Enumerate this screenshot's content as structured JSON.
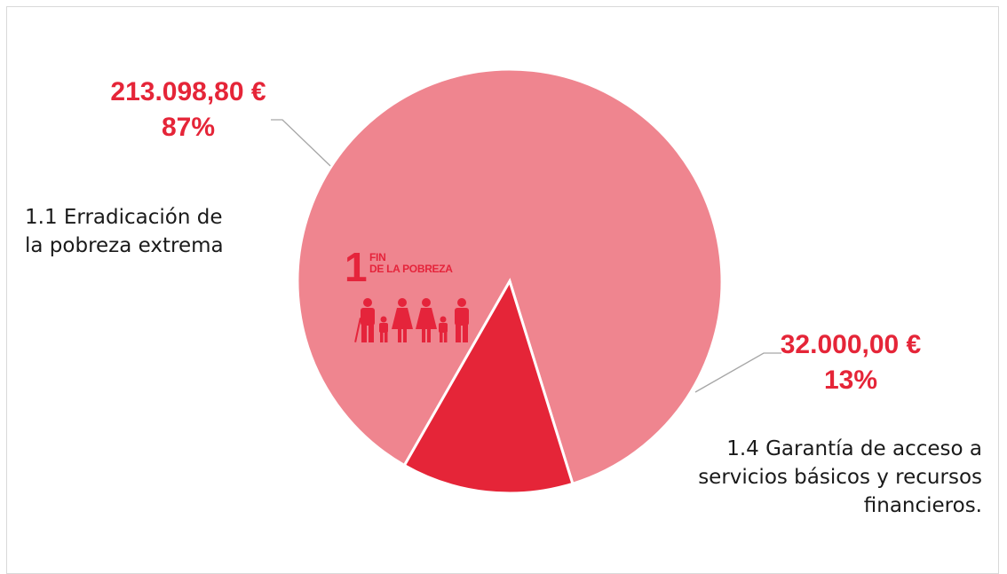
{
  "colors": {
    "slice_large": "#ef858f",
    "slice_small": "#e52538",
    "label": "#e52538",
    "leader": "#a6a6a6",
    "logo": "#e5243b"
  },
  "logo": {
    "number": "1",
    "title": "FIN\nDE LA POBREZA",
    "icon": "family-icon"
  },
  "chart_data": {
    "type": "pie",
    "slices": [
      {
        "category": "1.1 Erradicación de\nla pobreza extrema",
        "value": 213098.8,
        "value_label": "213.098,80 €",
        "percent": 87,
        "percent_label": "87%"
      },
      {
        "category": "1.4 Garantía de acceso a\nservicios básicos y recursos\nfinancieros.",
        "value": 32000.0,
        "value_label": "32.000,00 €",
        "percent": 13,
        "percent_label": "13%"
      }
    ]
  }
}
